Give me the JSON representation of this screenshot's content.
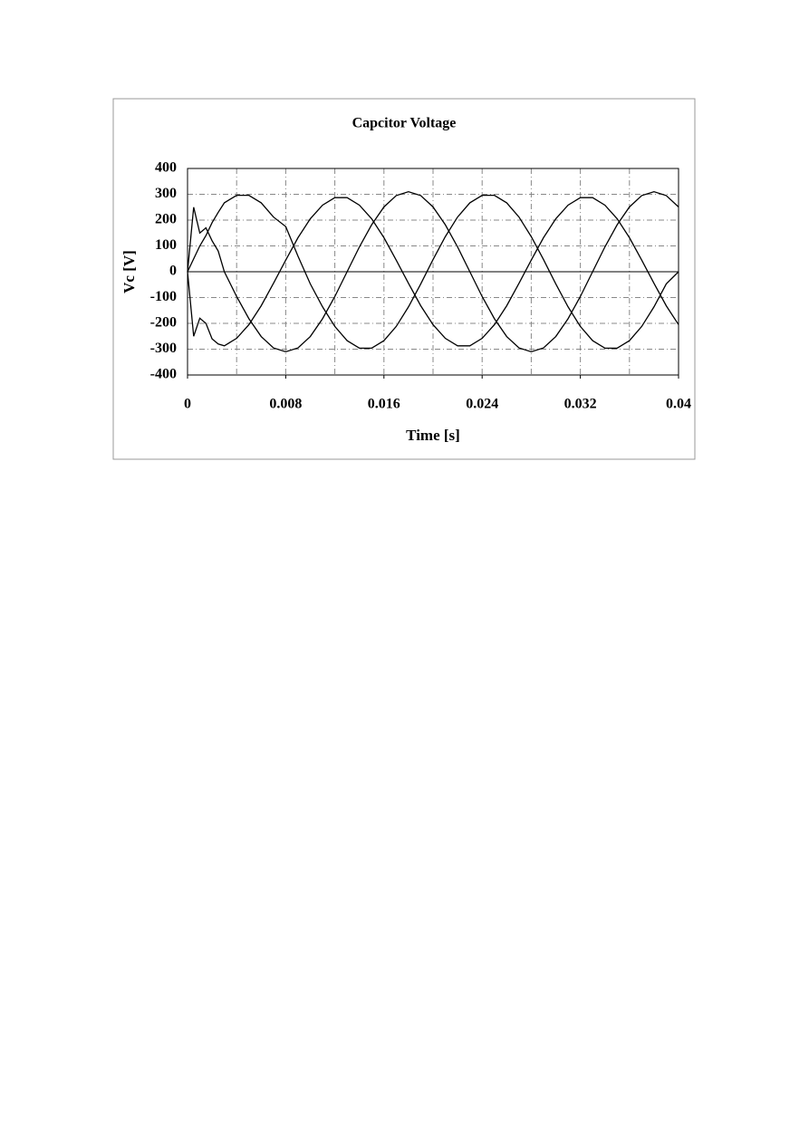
{
  "chart_data": {
    "type": "line",
    "title": "Capcitor Voltage",
    "xlabel": "Time [s]",
    "ylabel": "Vc [V]",
    "xlim": [
      0,
      0.04
    ],
    "xticks": [
      0,
      0.008,
      0.016,
      0.024,
      0.032,
      0.04
    ],
    "xgrid": [
      0.004,
      0.008,
      0.012,
      0.016,
      0.02,
      0.024,
      0.028,
      0.032,
      0.036
    ],
    "ylim": [
      -400,
      400
    ],
    "yticks": [
      -400,
      -300,
      -200,
      -100,
      0,
      100,
      200,
      300,
      400
    ],
    "grid": true,
    "x": [
      0,
      0.0005,
      0.001,
      0.0015,
      0.002,
      0.0025,
      0.003,
      0.004,
      0.005,
      0.006,
      0.007,
      0.008,
      0.009,
      0.01,
      0.011,
      0.012,
      0.013,
      0.014,
      0.015,
      0.016,
      0.017,
      0.018,
      0.019,
      0.02,
      0.021,
      0.022,
      0.023,
      0.024,
      0.025,
      0.026,
      0.027,
      0.028,
      0.029,
      0.03,
      0.031,
      0.032,
      0.033,
      0.034,
      0.035,
      0.036,
      0.037,
      0.038,
      0.039,
      0.04
    ],
    "series": [
      {
        "color": "#000000",
        "values": [
          0,
          50,
          100,
          140,
          190,
          230,
          267,
          296,
          296,
          267,
          212,
          175,
          60,
          -47,
          -136,
          -212,
          -267,
          -296,
          -296,
          -267,
          -212,
          -136,
          -47,
          47,
          136,
          212,
          267,
          296,
          296,
          267,
          212,
          136,
          47,
          -47,
          -136,
          -212,
          -267,
          -296,
          -296,
          -267,
          -212,
          -136,
          -47,
          0
        ]
      },
      {
        "color": "#000000",
        "values": [
          0,
          250,
          150,
          170,
          120,
          80,
          0,
          -96,
          -182,
          -251,
          -295,
          -310,
          -295,
          -251,
          -182,
          -96,
          0,
          96,
          182,
          251,
          295,
          310,
          295,
          251,
          182,
          96,
          0,
          -96,
          -182,
          -251,
          -295,
          -310,
          -295,
          -251,
          -182,
          -96,
          0,
          96,
          182,
          251,
          295,
          310,
          295,
          251
        ]
      },
      {
        "color": "#000000",
        "values": [
          0,
          -250,
          -180,
          -200,
          -260,
          -280,
          -287,
          -258,
          -205,
          -132,
          -45,
          45,
          132,
          205,
          258,
          287,
          287,
          258,
          205,
          132,
          45,
          -45,
          -132,
          -205,
          -258,
          -287,
          -287,
          -258,
          -205,
          -132,
          -45,
          45,
          132,
          205,
          258,
          287,
          287,
          258,
          205,
          132,
          45,
          -45,
          -132,
          -205
        ]
      }
    ]
  }
}
